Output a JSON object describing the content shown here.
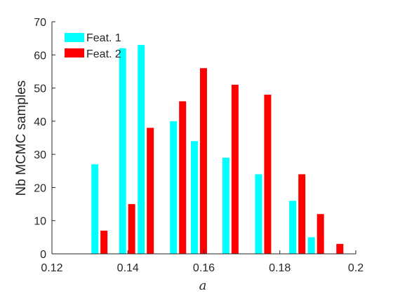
{
  "chart_data": {
    "type": "bar",
    "categories": [
      0.13,
      0.14,
      0.15,
      0.16,
      0.17,
      0.18,
      0.19
    ],
    "x": [
      0.1325,
      0.1425,
      0.1525,
      0.1625,
      0.1725,
      0.1825,
      0.1925
    ],
    "series": [
      {
        "name": "Feat. 1",
        "color": "#00FFFF",
        "x": [
          0.1313,
          0.1386,
          0.1435,
          0.152,
          0.1575,
          0.1658,
          0.1744,
          0.1834,
          0.1883,
          0.1934
        ],
        "values": [
          27,
          62,
          63,
          40,
          34,
          29,
          24,
          16,
          5,
          0
        ]
      },
      {
        "name": "Feat. 2",
        "color": "#FF0000",
        "x": [
          0.1337,
          0.141,
          0.1459,
          0.1544,
          0.1599,
          0.1682,
          0.1768,
          0.1858,
          0.1907,
          0.1958
        ],
        "values": [
          7,
          15,
          38,
          46,
          56,
          51,
          48,
          24,
          12,
          3
        ]
      }
    ],
    "xlabel": "a",
    "ylabel": "Nb MCMC samples",
    "xlim": [
      0.12,
      0.2
    ],
    "ylim": [
      0,
      70
    ],
    "xticks": [
      "0.12",
      "0.14",
      "0.16",
      "0.18",
      "0.2"
    ],
    "yticks": [
      "0",
      "10",
      "20",
      "30",
      "40",
      "50",
      "60",
      "70"
    ],
    "legend_position": "top-left",
    "grid": false
  }
}
